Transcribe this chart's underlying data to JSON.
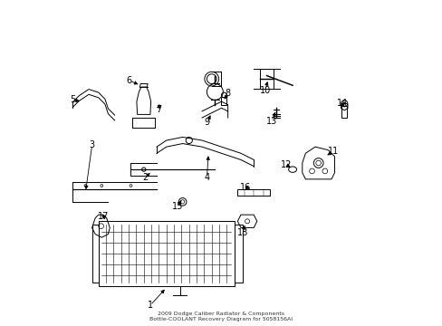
{
  "title": "2009 Dodge Caliber Radiator & Components\nBottle-COOLANT Recovery Diagram for 5058156AI",
  "bg_color": "#ffffff",
  "line_color": "#000000",
  "figsize": [
    4.89,
    3.6
  ],
  "dpi": 100
}
